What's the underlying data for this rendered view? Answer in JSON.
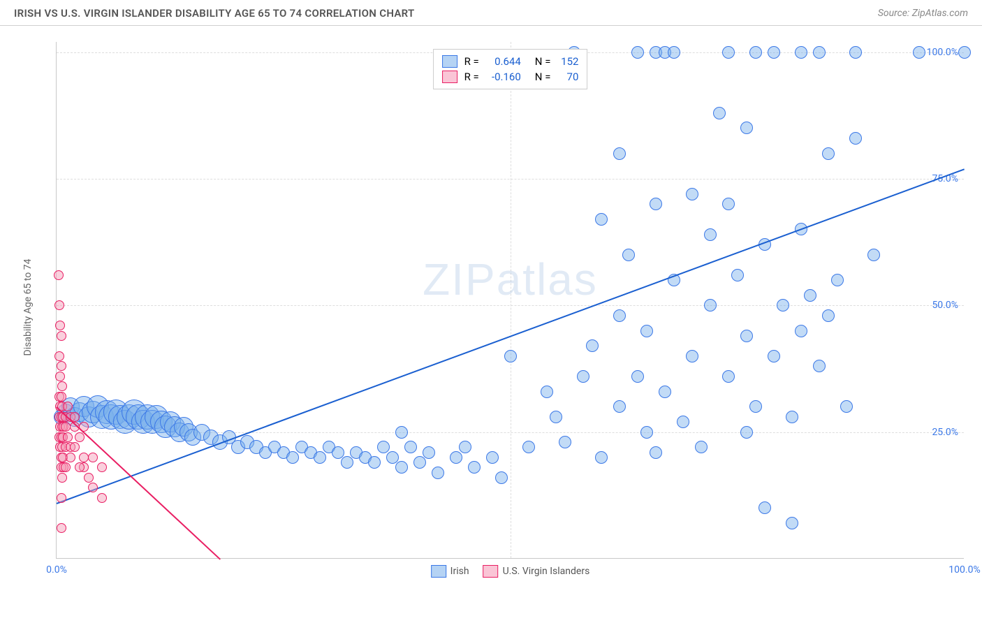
{
  "header": {
    "title": "IRISH VS U.S. VIRGIN ISLANDER DISABILITY AGE 65 TO 74 CORRELATION CHART",
    "source": "Source: ZipAtlas.com"
  },
  "chart": {
    "type": "scatter",
    "ylabel": "Disability Age 65 to 74",
    "xlim": [
      0,
      100
    ],
    "ylim": [
      0,
      102
    ],
    "xticks": [
      0,
      100
    ],
    "xtick_labels": [
      "0.0%",
      "100.0%"
    ],
    "yticks": [
      25,
      50,
      75,
      100
    ],
    "ytick_labels": [
      "25.0%",
      "50.0%",
      "75.0%",
      "100.0%"
    ],
    "x_gridlines": [
      50
    ],
    "background_color": "#ffffff",
    "grid_color": "#dddddd",
    "axis_color": "#c8c8c8",
    "tick_label_color": "#3b78e7",
    "series": [
      {
        "name": "Irish",
        "marker_fill": "rgba(120, 175, 235, 0.45)",
        "marker_stroke": "#3b78e7",
        "swatch_fill": "rgba(120, 175, 235, 0.55)",
        "swatch_stroke": "#3b78e7",
        "trend": {
          "x1": 0,
          "y1": 11,
          "x2": 100,
          "y2": 77,
          "color": "#1a5fd0",
          "width": 2
        },
        "stats": {
          "R": "0.644",
          "N": "152"
        },
        "points": [
          {
            "x": 0.5,
            "y": 28,
            "r": 11
          },
          {
            "x": 1,
            "y": 29,
            "r": 12
          },
          {
            "x": 1.5,
            "y": 30,
            "r": 13
          },
          {
            "x": 2,
            "y": 28,
            "r": 14
          },
          {
            "x": 2.5,
            "y": 29,
            "r": 14
          },
          {
            "x": 3,
            "y": 30,
            "r": 15
          },
          {
            "x": 3.5,
            "y": 28,
            "r": 15
          },
          {
            "x": 4,
            "y": 29,
            "r": 16
          },
          {
            "x": 4.5,
            "y": 30,
            "r": 16
          },
          {
            "x": 5,
            "y": 28,
            "r": 17
          },
          {
            "x": 5.5,
            "y": 29,
            "r": 17
          },
          {
            "x": 6,
            "y": 28,
            "r": 18
          },
          {
            "x": 6.5,
            "y": 29,
            "r": 18
          },
          {
            "x": 7,
            "y": 28,
            "r": 17
          },
          {
            "x": 7.5,
            "y": 27,
            "r": 17
          },
          {
            "x": 8,
            "y": 28,
            "r": 18
          },
          {
            "x": 8.5,
            "y": 29,
            "r": 18
          },
          {
            "x": 9,
            "y": 28,
            "r": 18
          },
          {
            "x": 9.5,
            "y": 27,
            "r": 17
          },
          {
            "x": 10,
            "y": 28,
            "r": 18
          },
          {
            "x": 10.5,
            "y": 27,
            "r": 17
          },
          {
            "x": 11,
            "y": 28,
            "r": 17
          },
          {
            "x": 11.5,
            "y": 27,
            "r": 16
          },
          {
            "x": 12,
            "y": 26,
            "r": 16
          },
          {
            "x": 12.5,
            "y": 27,
            "r": 15
          },
          {
            "x": 13,
            "y": 26,
            "r": 15
          },
          {
            "x": 13.5,
            "y": 25,
            "r": 14
          },
          {
            "x": 14,
            "y": 26,
            "r": 14
          },
          {
            "x": 14.5,
            "y": 25,
            "r": 13
          },
          {
            "x": 15,
            "y": 24,
            "r": 12
          },
          {
            "x": 16,
            "y": 25,
            "r": 12
          },
          {
            "x": 17,
            "y": 24,
            "r": 11
          },
          {
            "x": 18,
            "y": 23,
            "r": 11
          },
          {
            "x": 19,
            "y": 24,
            "r": 10
          },
          {
            "x": 20,
            "y": 22,
            "r": 10
          },
          {
            "x": 21,
            "y": 23,
            "r": 10
          },
          {
            "x": 22,
            "y": 22,
            "r": 10
          },
          {
            "x": 23,
            "y": 21,
            "r": 9
          },
          {
            "x": 24,
            "y": 22,
            "r": 9
          },
          {
            "x": 25,
            "y": 21,
            "r": 9
          },
          {
            "x": 26,
            "y": 20,
            "r": 9
          },
          {
            "x": 27,
            "y": 22,
            "r": 9
          },
          {
            "x": 28,
            "y": 21,
            "r": 9
          },
          {
            "x": 29,
            "y": 20,
            "r": 9
          },
          {
            "x": 30,
            "y": 22,
            "r": 9
          },
          {
            "x": 31,
            "y": 21,
            "r": 9
          },
          {
            "x": 32,
            "y": 19,
            "r": 9
          },
          {
            "x": 33,
            "y": 21,
            "r": 9
          },
          {
            "x": 34,
            "y": 20,
            "r": 9
          },
          {
            "x": 35,
            "y": 19,
            "r": 9
          },
          {
            "x": 36,
            "y": 22,
            "r": 9
          },
          {
            "x": 37,
            "y": 20,
            "r": 9
          },
          {
            "x": 38,
            "y": 18,
            "r": 9
          },
          {
            "x": 39,
            "y": 22,
            "r": 9
          },
          {
            "x": 40,
            "y": 19,
            "r": 9
          },
          {
            "x": 41,
            "y": 21,
            "r": 9
          },
          {
            "x": 42,
            "y": 17,
            "r": 9
          },
          {
            "x": 44,
            "y": 20,
            "r": 9
          },
          {
            "x": 38,
            "y": 25,
            "r": 9
          },
          {
            "x": 45,
            "y": 22,
            "r": 9
          },
          {
            "x": 46,
            "y": 18,
            "r": 9
          },
          {
            "x": 48,
            "y": 20,
            "r": 9
          },
          {
            "x": 49,
            "y": 16,
            "r": 9
          },
          {
            "x": 50,
            "y": 40,
            "r": 9
          },
          {
            "x": 52,
            "y": 22,
            "r": 9
          },
          {
            "x": 54,
            "y": 33,
            "r": 9
          },
          {
            "x": 55,
            "y": 28,
            "r": 9
          },
          {
            "x": 56,
            "y": 23,
            "r": 9
          },
          {
            "x": 58,
            "y": 36,
            "r": 9
          },
          {
            "x": 59,
            "y": 42,
            "r": 9
          },
          {
            "x": 60,
            "y": 20,
            "r": 9
          },
          {
            "x": 57,
            "y": 100,
            "r": 9
          },
          {
            "x": 60,
            "y": 67,
            "r": 9
          },
          {
            "x": 62,
            "y": 30,
            "r": 9
          },
          {
            "x": 62,
            "y": 48,
            "r": 9
          },
          {
            "x": 62,
            "y": 80,
            "r": 9
          },
          {
            "x": 63,
            "y": 60,
            "r": 9
          },
          {
            "x": 64,
            "y": 36,
            "r": 9
          },
          {
            "x": 64,
            "y": 100,
            "r": 9
          },
          {
            "x": 65,
            "y": 25,
            "r": 9
          },
          {
            "x": 65,
            "y": 45,
            "r": 9
          },
          {
            "x": 66,
            "y": 21,
            "r": 9
          },
          {
            "x": 66,
            "y": 70,
            "r": 9
          },
          {
            "x": 66,
            "y": 100,
            "r": 9
          },
          {
            "x": 67,
            "y": 33,
            "r": 9
          },
          {
            "x": 67,
            "y": 100,
            "r": 9
          },
          {
            "x": 68,
            "y": 55,
            "r": 9
          },
          {
            "x": 68,
            "y": 100,
            "r": 9
          },
          {
            "x": 69,
            "y": 27,
            "r": 9
          },
          {
            "x": 70,
            "y": 40,
            "r": 9
          },
          {
            "x": 70,
            "y": 72,
            "r": 9
          },
          {
            "x": 71,
            "y": 22,
            "r": 9
          },
          {
            "x": 72,
            "y": 50,
            "r": 9
          },
          {
            "x": 72,
            "y": 64,
            "r": 9
          },
          {
            "x": 73,
            "y": 88,
            "r": 9
          },
          {
            "x": 74,
            "y": 36,
            "r": 9
          },
          {
            "x": 74,
            "y": 70,
            "r": 9
          },
          {
            "x": 74,
            "y": 100,
            "r": 9
          },
          {
            "x": 75,
            "y": 56,
            "r": 9
          },
          {
            "x": 76,
            "y": 25,
            "r": 9
          },
          {
            "x": 76,
            "y": 44,
            "r": 9
          },
          {
            "x": 76,
            "y": 85,
            "r": 9
          },
          {
            "x": 77,
            "y": 30,
            "r": 9
          },
          {
            "x": 77,
            "y": 100,
            "r": 9
          },
          {
            "x": 78,
            "y": 10,
            "r": 9
          },
          {
            "x": 78,
            "y": 62,
            "r": 9
          },
          {
            "x": 79,
            "y": 40,
            "r": 9
          },
          {
            "x": 79,
            "y": 100,
            "r": 9
          },
          {
            "x": 80,
            "y": 50,
            "r": 9
          },
          {
            "x": 81,
            "y": 7,
            "r": 9
          },
          {
            "x": 81,
            "y": 28,
            "r": 9
          },
          {
            "x": 82,
            "y": 45,
            "r": 9
          },
          {
            "x": 82,
            "y": 65,
            "r": 9
          },
          {
            "x": 82,
            "y": 100,
            "r": 9
          },
          {
            "x": 83,
            "y": 52,
            "r": 9
          },
          {
            "x": 84,
            "y": 38,
            "r": 9
          },
          {
            "x": 84,
            "y": 100,
            "r": 9
          },
          {
            "x": 85,
            "y": 48,
            "r": 9
          },
          {
            "x": 85,
            "y": 80,
            "r": 9
          },
          {
            "x": 86,
            "y": 55,
            "r": 9
          },
          {
            "x": 87,
            "y": 30,
            "r": 9
          },
          {
            "x": 88,
            "y": 83,
            "r": 9
          },
          {
            "x": 88,
            "y": 100,
            "r": 9
          },
          {
            "x": 90,
            "y": 60,
            "r": 9
          },
          {
            "x": 95,
            "y": 100,
            "r": 9
          },
          {
            "x": 100,
            "y": 100,
            "r": 9
          }
        ]
      },
      {
        "name": "U.S. Virgin Islanders",
        "marker_fill": "rgba(245, 150, 180, 0.45)",
        "marker_stroke": "#e91e63",
        "swatch_fill": "rgba(245, 150, 180, 0.55)",
        "swatch_stroke": "#e91e63",
        "trend": {
          "x1": 0,
          "y1": 30,
          "x2": 18,
          "y2": 0,
          "color": "#e91e63",
          "width": 2,
          "dashed_ext": {
            "x2": 20,
            "y2": -3
          }
        },
        "stats": {
          "R": "-0.160",
          "N": "70"
        },
        "points": [
          {
            "x": 0.2,
            "y": 56,
            "r": 7
          },
          {
            "x": 0.3,
            "y": 50,
            "r": 7
          },
          {
            "x": 0.4,
            "y": 46,
            "r": 7
          },
          {
            "x": 0.5,
            "y": 44,
            "r": 7
          },
          {
            "x": 0.3,
            "y": 40,
            "r": 7
          },
          {
            "x": 0.5,
            "y": 38,
            "r": 7
          },
          {
            "x": 0.4,
            "y": 36,
            "r": 7
          },
          {
            "x": 0.6,
            "y": 34,
            "r": 7
          },
          {
            "x": 0.3,
            "y": 32,
            "r": 7
          },
          {
            "x": 0.5,
            "y": 32,
            "r": 7
          },
          {
            "x": 0.4,
            "y": 30,
            "r": 7
          },
          {
            "x": 0.6,
            "y": 30,
            "r": 7
          },
          {
            "x": 0.3,
            "y": 28,
            "r": 7
          },
          {
            "x": 0.5,
            "y": 28,
            "r": 7
          },
          {
            "x": 0.7,
            "y": 28,
            "r": 7
          },
          {
            "x": 0.4,
            "y": 26,
            "r": 7
          },
          {
            "x": 0.6,
            "y": 26,
            "r": 7
          },
          {
            "x": 0.8,
            "y": 26,
            "r": 7
          },
          {
            "x": 0.3,
            "y": 24,
            "r": 7
          },
          {
            "x": 0.5,
            "y": 24,
            "r": 7
          },
          {
            "x": 0.7,
            "y": 24,
            "r": 7
          },
          {
            "x": 0.4,
            "y": 22,
            "r": 7
          },
          {
            "x": 0.6,
            "y": 22,
            "r": 7
          },
          {
            "x": 1,
            "y": 28,
            "r": 7
          },
          {
            "x": 1,
            "y": 26,
            "r": 7
          },
          {
            "x": 1.2,
            "y": 30,
            "r": 7
          },
          {
            "x": 1.5,
            "y": 28,
            "r": 7
          },
          {
            "x": 0.5,
            "y": 20,
            "r": 7
          },
          {
            "x": 0.7,
            "y": 20,
            "r": 7
          },
          {
            "x": 1,
            "y": 22,
            "r": 7
          },
          {
            "x": 1.2,
            "y": 24,
            "r": 7
          },
          {
            "x": 1.5,
            "y": 20,
            "r": 7
          },
          {
            "x": 0.5,
            "y": 18,
            "r": 7
          },
          {
            "x": 0.8,
            "y": 18,
            "r": 7
          },
          {
            "x": 1,
            "y": 18,
            "r": 7
          },
          {
            "x": 1.5,
            "y": 22,
            "r": 7
          },
          {
            "x": 2,
            "y": 28,
            "r": 7
          },
          {
            "x": 2,
            "y": 22,
            "r": 7
          },
          {
            "x": 2,
            "y": 26,
            "r": 7
          },
          {
            "x": 2.5,
            "y": 24,
            "r": 7
          },
          {
            "x": 0.6,
            "y": 16,
            "r": 7
          },
          {
            "x": 3,
            "y": 20,
            "r": 7
          },
          {
            "x": 3,
            "y": 18,
            "r": 7
          },
          {
            "x": 3.5,
            "y": 16,
            "r": 7
          },
          {
            "x": 0.5,
            "y": 12,
            "r": 7
          },
          {
            "x": 4,
            "y": 14,
            "r": 7
          },
          {
            "x": 5,
            "y": 12,
            "r": 7
          },
          {
            "x": 0.5,
            "y": 6,
            "r": 7
          },
          {
            "x": 3,
            "y": 26,
            "r": 7
          },
          {
            "x": 4,
            "y": 20,
            "r": 7
          },
          {
            "x": 2.5,
            "y": 18,
            "r": 7
          },
          {
            "x": 5,
            "y": 18,
            "r": 7
          }
        ]
      }
    ],
    "legend_top": {
      "R_label": "R =",
      "N_label": "N ="
    },
    "legend_bottom": {
      "items": [
        "Irish",
        "U.S. Virgin Islanders"
      ]
    },
    "watermark": {
      "bold": "ZIP",
      "thin": "atlas"
    }
  }
}
